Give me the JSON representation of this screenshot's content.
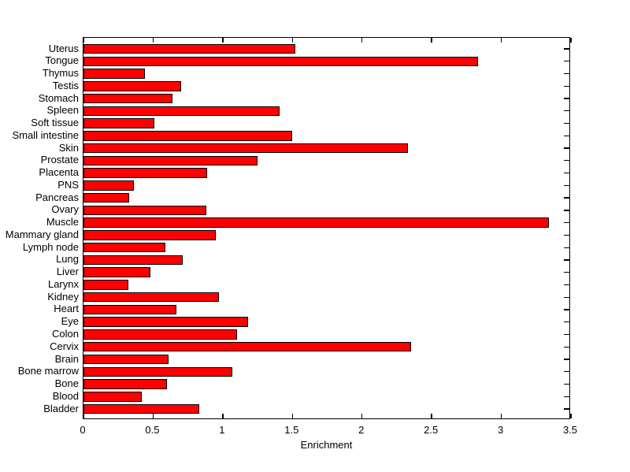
{
  "chart_data": {
    "type": "bar",
    "orientation": "horizontal",
    "title": "",
    "xlabel": "Enrichment",
    "ylabel": "",
    "xlim": [
      0,
      3.5
    ],
    "x_ticks": [
      0,
      0.5,
      1,
      1.5,
      2,
      2.5,
      3,
      3.5
    ],
    "x_tick_labels": [
      "0",
      "0.5",
      "1",
      "1.5",
      "2",
      "2.5",
      "3",
      "3.5"
    ],
    "grid": false,
    "legend": "none",
    "bar_color": "#ff0000",
    "bar_edge_color": "#000000",
    "axis_color": "#000000",
    "background_color": "#ffffff",
    "categories": [
      "Uterus",
      "Tongue",
      "Thymus",
      "Testis",
      "Stomach",
      "Spleen",
      "Soft tissue",
      "Small intestine",
      "Skin",
      "Prostate",
      "Placenta",
      "PNS",
      "Pancreas",
      "Ovary",
      "Muscle",
      "Mammary gland",
      "Lymph node",
      "Lung",
      "Liver",
      "Larynx",
      "Kidney",
      "Heart",
      "Eye",
      "Colon",
      "Cervix",
      "Brain",
      "Bone marrow",
      "Bone",
      "Blood",
      "Bladder"
    ],
    "values": [
      1.52,
      2.83,
      0.44,
      0.7,
      0.64,
      1.41,
      0.51,
      1.5,
      2.33,
      1.25,
      0.89,
      0.36,
      0.33,
      0.88,
      3.34,
      0.95,
      0.59,
      0.71,
      0.48,
      0.32,
      0.97,
      0.67,
      1.18,
      1.1,
      2.35,
      0.61,
      1.07,
      0.6,
      0.42,
      0.83
    ]
  }
}
